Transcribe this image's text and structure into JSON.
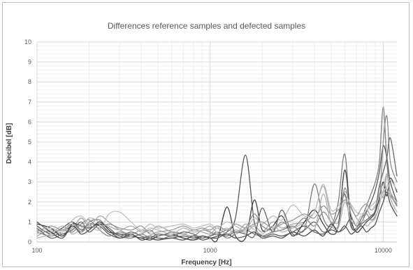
{
  "chart_data": {
    "type": "line",
    "title": "Differences reference samples and defected samples",
    "xlabel": "Frequency [Hz]",
    "ylabel": "Decibel [dB]",
    "xscale": "log",
    "xlim": [
      100,
      12000
    ],
    "ylim": [
      0,
      10
    ],
    "xticks": [
      "100",
      "1000",
      "10000"
    ],
    "yticks": [
      "0",
      "1",
      "2",
      "3",
      "4",
      "5",
      "6",
      "7",
      "8",
      "9",
      "10"
    ],
    "grid": true,
    "legend": "none",
    "x": [
      100,
      120,
      140,
      160,
      180,
      200,
      230,
      260,
      300,
      350,
      400,
      450,
      500,
      600,
      700,
      800,
      900,
      1000,
      1100,
      1250,
      1400,
      1600,
      1800,
      2000,
      2300,
      2600,
      3000,
      3500,
      4000,
      4500,
      5000,
      5500,
      6000,
      6500,
      7000,
      7500,
      8000,
      8500,
      9000,
      9500,
      10000,
      10500,
      11000,
      12000
    ],
    "series": [
      {
        "color": "#595959",
        "values": [
          0.8,
          0.4,
          0.7,
          1.0,
          0.6,
          0.9,
          0.8,
          0.4,
          0.2,
          0.3,
          0.2,
          0.3,
          0.2,
          0.2,
          0.3,
          0.2,
          0.3,
          0.2,
          0.3,
          0.5,
          1.2,
          4.35,
          1.0,
          0.3,
          0.4,
          0.3,
          0.5,
          0.8,
          0.5,
          0.4,
          0.6,
          0.5,
          0.7,
          1.2,
          0.8,
          1.0,
          1.5,
          2.0,
          2.6,
          3.5,
          4.8,
          4.2,
          3.0,
          2.0
        ]
      },
      {
        "color": "#7f7f7f",
        "values": [
          0.5,
          0.3,
          0.5,
          0.8,
          0.5,
          1.0,
          1.1,
          0.6,
          0.3,
          0.2,
          0.4,
          0.2,
          0.1,
          0.3,
          0.2,
          0.1,
          0.2,
          0.3,
          0.5,
          0.2,
          0.4,
          0.6,
          0.4,
          0.3,
          0.5,
          0.6,
          0.8,
          0.6,
          2.9,
          1.2,
          0.8,
          2.0,
          4.4,
          1.0,
          0.7,
          1.2,
          1.8,
          2.4,
          3.0,
          4.0,
          6.75,
          4.0,
          2.5,
          1.8
        ]
      },
      {
        "color": "#a6a6a6",
        "values": [
          0.3,
          0.6,
          0.4,
          0.7,
          1.2,
          0.8,
          1.3,
          1.0,
          0.6,
          0.4,
          0.6,
          0.5,
          0.8,
          0.5,
          0.4,
          0.6,
          0.5,
          0.4,
          0.7,
          0.4,
          0.6,
          0.5,
          0.8,
          0.5,
          1.0,
          0.7,
          0.9,
          1.0,
          1.5,
          2.8,
          1.3,
          1.0,
          2.5,
          1.8,
          1.2,
          1.0,
          1.6,
          1.3,
          1.5,
          2.8,
          2.2,
          3.3,
          2.5,
          2.0
        ]
      },
      {
        "color": "#404040",
        "values": [
          0.9,
          0.7,
          0.3,
          0.9,
          0.8,
          0.7,
          0.9,
          0.5,
          0.4,
          0.3,
          0.2,
          0.1,
          0.3,
          0.4,
          0.2,
          0.1,
          0.3,
          0.2,
          0.1,
          1.75,
          0.3,
          0.2,
          2.1,
          0.6,
          0.8,
          1.3,
          0.3,
          1.0,
          1.6,
          0.9,
          0.4,
          0.8,
          3.6,
          1.2,
          0.5,
          0.7,
          1.0,
          1.2,
          1.5,
          2.2,
          3.0,
          2.3,
          3.2,
          2.5
        ]
      },
      {
        "color": "#8c8c8c",
        "values": [
          0.6,
          0.5,
          0.6,
          0.5,
          0.9,
          1.1,
          0.6,
          0.3,
          0.5,
          0.3,
          0.4,
          0.6,
          0.3,
          0.5,
          0.4,
          0.3,
          0.6,
          0.5,
          0.4,
          0.6,
          0.5,
          0.7,
          1.4,
          0.8,
          0.6,
          1.0,
          0.7,
          1.2,
          0.8,
          1.5,
          1.0,
          0.8,
          2.7,
          1.4,
          0.8,
          1.2,
          1.4,
          1.1,
          1.3,
          2.0,
          5.0,
          6.3,
          4.0,
          3.0
        ]
      },
      {
        "color": "#bfbfbf",
        "values": [
          0.4,
          0.7,
          0.5,
          1.1,
          1.3,
          0.9,
          0.6,
          1.4,
          1.5,
          1.0,
          0.6,
          0.9,
          0.7,
          0.8,
          0.9,
          0.7,
          0.8,
          0.9,
          0.7,
          1.0,
          0.8,
          0.6,
          1.2,
          0.9,
          1.3,
          1.1,
          1.85,
          1.3,
          1.5,
          2.9,
          1.6,
          1.8,
          2.3,
          1.9,
          1.5,
          1.4,
          1.6,
          1.8,
          2.0,
          2.3,
          2.5,
          2.8,
          3.1,
          2.6
        ]
      },
      {
        "color": "#696969",
        "values": [
          0.7,
          0.2,
          0.4,
          0.6,
          1.0,
          0.5,
          0.9,
          0.7,
          0.3,
          0.5,
          0.3,
          0.2,
          0.4,
          0.3,
          0.5,
          0.4,
          0.2,
          0.3,
          0.4,
          0.3,
          0.5,
          0.4,
          0.3,
          1.7,
          0.5,
          1.6,
          0.4,
          0.6,
          1.0,
          0.5,
          0.7,
          1.4,
          2.4,
          0.8,
          0.6,
          0.9,
          1.1,
          1.3,
          1.6,
          2.8,
          3.5,
          4.2,
          5.2,
          3.3
        ]
      },
      {
        "color": "#b3b3b3",
        "values": [
          0.2,
          0.4,
          0.8,
          0.4,
          0.7,
          1.2,
          1.0,
          0.8,
          0.6,
          0.8,
          0.5,
          0.7,
          0.6,
          0.4,
          0.7,
          0.5,
          0.6,
          0.8,
          0.5,
          0.7,
          0.4,
          0.9,
          0.6,
          0.4,
          0.8,
          0.5,
          0.7,
          0.9,
          0.6,
          2.4,
          0.9,
          0.7,
          2.0,
          1.1,
          0.9,
          1.3,
          0.8,
          1.0,
          1.2,
          1.9,
          2.6,
          3.4,
          2.2,
          1.5
        ]
      },
      {
        "color": "#505050",
        "values": [
          1.0,
          0.5,
          0.2,
          0.8,
          0.4,
          0.6,
          1.0,
          0.6,
          0.2,
          0.4,
          0.1,
          0.2,
          0.1,
          0.2,
          0.1,
          0.3,
          0.1,
          0.2,
          0.2,
          0.4,
          0.2,
          0.3,
          0.5,
          0.2,
          0.3,
          0.2,
          0.5,
          0.3,
          0.6,
          0.3,
          0.9,
          0.5,
          0.8,
          0.4,
          0.6,
          0.8,
          0.5,
          0.7,
          0.9,
          1.5,
          2.0,
          2.5,
          1.9,
          1.3
        ]
      },
      {
        "color": "#999999",
        "values": [
          0.5,
          0.8,
          0.6,
          0.9,
          0.5,
          0.8,
          0.7,
          0.9,
          0.7,
          0.6,
          0.8,
          0.4,
          0.5,
          0.6,
          0.8,
          0.6,
          0.7,
          0.6,
          0.8,
          0.6,
          0.9,
          0.7,
          0.9,
          1.0,
          0.7,
          0.9,
          1.1,
          1.4,
          1.2,
          1.8,
          1.4,
          1.6,
          2.1,
          1.7,
          1.3,
          1.7,
          1.9,
          1.6,
          1.8,
          2.4,
          2.9,
          2.6,
          2.3,
          1.9
        ]
      }
    ]
  }
}
